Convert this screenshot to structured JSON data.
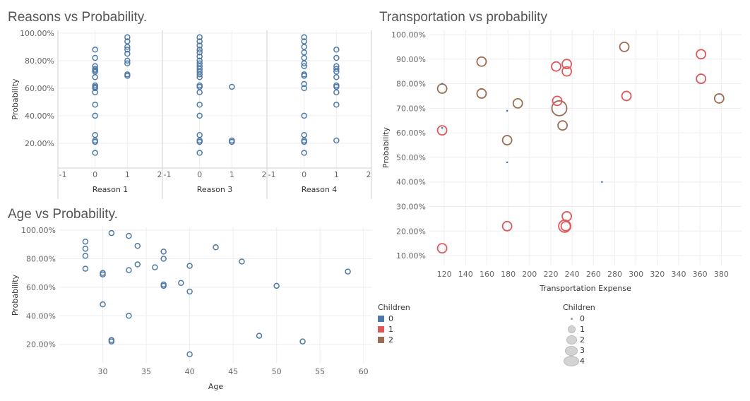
{
  "titles": {
    "reasons": "Reasons vs Probability.",
    "age": "Age vs Probability.",
    "transport": "Transportation vs probability"
  },
  "legend_color": {
    "title": "Children",
    "items": [
      {
        "label": "0",
        "color": "#4e79a7"
      },
      {
        "label": "1",
        "color": "#e15759"
      },
      {
        "label": "2",
        "color": "#9c6b53"
      }
    ]
  },
  "legend_size": {
    "title": "Children",
    "items": [
      "0",
      "1",
      "2",
      "3",
      "4"
    ]
  },
  "chart_data": [
    {
      "id": "reasons",
      "type": "scatter",
      "title": "Reasons vs Probability.",
      "ylabel": "Probability",
      "yticks": [
        "20.00%",
        "40.00%",
        "60.00%",
        "80.00%",
        "100.00%"
      ],
      "ylim": [
        0.02,
        1.02
      ],
      "xlim": [
        -1,
        2
      ],
      "xticks": [
        "-1",
        "0",
        "1",
        "2"
      ],
      "color": "#4e79a7",
      "panels": [
        {
          "xlabel": "Reason 1",
          "points": [
            [
              0,
              0.88
            ],
            [
              0,
              0.82
            ],
            [
              0,
              0.76
            ],
            [
              0,
              0.74
            ],
            [
              0,
              0.73
            ],
            [
              0,
              0.72
            ],
            [
              0,
              0.68
            ],
            [
              0,
              0.62
            ],
            [
              0,
              0.61
            ],
            [
              0,
              0.6
            ],
            [
              0,
              0.57
            ],
            [
              0,
              0.48
            ],
            [
              0,
              0.4
            ],
            [
              0,
              0.26
            ],
            [
              0,
              0.22
            ],
            [
              0,
              0.21
            ],
            [
              0,
              0.13
            ],
            [
              1,
              0.97
            ],
            [
              1,
              0.94
            ],
            [
              1,
              0.9
            ],
            [
              1,
              0.88
            ],
            [
              1,
              0.85
            ],
            [
              1,
              0.8
            ],
            [
              1,
              0.78
            ],
            [
              1,
              0.7
            ],
            [
              1,
              0.69
            ]
          ]
        },
        {
          "xlabel": "Reason 3",
          "points": [
            [
              0,
              0.97
            ],
            [
              0,
              0.94
            ],
            [
              0,
              0.91
            ],
            [
              0,
              0.88
            ],
            [
              0,
              0.86
            ],
            [
              0,
              0.83
            ],
            [
              0,
              0.8
            ],
            [
              0,
              0.78
            ],
            [
              0,
              0.76
            ],
            [
              0,
              0.74
            ],
            [
              0,
              0.72
            ],
            [
              0,
              0.7
            ],
            [
              0,
              0.68
            ],
            [
              0,
              0.62
            ],
            [
              0,
              0.61
            ],
            [
              0,
              0.57
            ],
            [
              0,
              0.48
            ],
            [
              0,
              0.4
            ],
            [
              0,
              0.26
            ],
            [
              0,
              0.22
            ],
            [
              0,
              0.21
            ],
            [
              0,
              0.13
            ],
            [
              1,
              0.61
            ],
            [
              1,
              0.22
            ],
            [
              1,
              0.21
            ]
          ]
        },
        {
          "xlabel": "Reason 4",
          "points": [
            [
              0,
              0.97
            ],
            [
              0,
              0.94
            ],
            [
              0,
              0.9
            ],
            [
              0,
              0.86
            ],
            [
              0,
              0.82
            ],
            [
              0,
              0.78
            ],
            [
              0,
              0.76
            ],
            [
              0,
              0.7
            ],
            [
              0,
              0.69
            ],
            [
              0,
              0.63
            ],
            [
              0,
              0.6
            ],
            [
              0,
              0.4
            ],
            [
              0,
              0.26
            ],
            [
              0,
              0.22
            ],
            [
              0,
              0.21
            ],
            [
              0,
              0.13
            ],
            [
              1,
              0.88
            ],
            [
              1,
              0.82
            ],
            [
              1,
              0.76
            ],
            [
              1,
              0.74
            ],
            [
              1,
              0.72
            ],
            [
              1,
              0.68
            ],
            [
              1,
              0.62
            ],
            [
              1,
              0.61
            ],
            [
              1,
              0.57
            ],
            [
              1,
              0.48
            ],
            [
              1,
              0.22
            ]
          ]
        }
      ]
    },
    {
      "id": "age",
      "type": "scatter",
      "title": "Age vs Probability.",
      "xlabel": "Age",
      "ylabel": "Probability",
      "xlim": [
        25,
        61
      ],
      "ylim": [
        0.07,
        1.02
      ],
      "xticks": [
        "30",
        "35",
        "40",
        "45",
        "50",
        "55",
        "60"
      ],
      "yticks": [
        "20.00%",
        "40.00%",
        "60.00%",
        "80.00%",
        "100.00%"
      ],
      "color": "#4e79a7",
      "points": [
        [
          28,
          0.92
        ],
        [
          28,
          0.87
        ],
        [
          28,
          0.82
        ],
        [
          28,
          0.73
        ],
        [
          30,
          0.7
        ],
        [
          30,
          0.69
        ],
        [
          30,
          0.48
        ],
        [
          31,
          0.98
        ],
        [
          31,
          0.23
        ],
        [
          31,
          0.22
        ],
        [
          33,
          0.96
        ],
        [
          33,
          0.72
        ],
        [
          33,
          0.4
        ],
        [
          34,
          0.89
        ],
        [
          34,
          0.76
        ],
        [
          36,
          0.74
        ],
        [
          37,
          0.85
        ],
        [
          37,
          0.8
        ],
        [
          37,
          0.62
        ],
        [
          37,
          0.61
        ],
        [
          39,
          0.63
        ],
        [
          40,
          0.75
        ],
        [
          40,
          0.57
        ],
        [
          40,
          0.13
        ],
        [
          43,
          0.88
        ],
        [
          46,
          0.78
        ],
        [
          48,
          0.26
        ],
        [
          50,
          0.61
        ],
        [
          53,
          0.22
        ],
        [
          58.2,
          0.71
        ]
      ]
    },
    {
      "id": "transport",
      "type": "scatter",
      "title": "Transportation vs probability",
      "xlabel": "Transportation Expense",
      "ylabel": "Probability",
      "xlim": [
        106,
        399
      ],
      "ylim": [
        0.06,
        1.02
      ],
      "xticks": [
        "120",
        "140",
        "160",
        "180",
        "200",
        "220",
        "240",
        "260",
        "280",
        "300",
        "320",
        "340",
        "360",
        "380"
      ],
      "yticks": [
        "10.00%",
        "20.00%",
        "30.00%",
        "40.00%",
        "50.00%",
        "60.00%",
        "70.00%",
        "80.00%",
        "90.00%",
        "100.00%"
      ],
      "series": [
        {
          "name": "0",
          "color": "#4e79a7",
          "points": [
            [
              118,
              0.8,
              0
            ],
            [
              118,
              0.62,
              0
            ],
            [
              179,
              0.69,
              0
            ],
            [
              179,
              0.48,
              0
            ],
            [
              268,
              0.4,
              0
            ]
          ]
        },
        {
          "name": "1",
          "color": "#e15759",
          "points": [
            [
              118,
              0.61,
              1
            ],
            [
              118,
              0.13,
              1
            ],
            [
              179,
              0.22,
              1
            ],
            [
              225,
              0.87,
              1
            ],
            [
              226,
              0.73,
              1
            ],
            [
              233,
              0.22,
              2
            ],
            [
              234,
              0.22,
              1
            ],
            [
              235,
              0.88,
              1
            ],
            [
              235,
              0.85,
              1
            ],
            [
              235,
              0.26,
              1
            ],
            [
              291,
              0.75,
              1
            ],
            [
              361,
              0.92,
              1
            ],
            [
              361,
              0.82,
              1
            ]
          ]
        },
        {
          "name": "2",
          "color": "#9c6b53",
          "points": [
            [
              118,
              0.78,
              1
            ],
            [
              155,
              0.89,
              1
            ],
            [
              155,
              0.76,
              1
            ],
            [
              179,
              0.57,
              1
            ],
            [
              189,
              0.72,
              1
            ],
            [
              228,
              0.7,
              3
            ],
            [
              231,
              0.63,
              1
            ],
            [
              289,
              0.95,
              1
            ],
            [
              378,
              0.74,
              1
            ]
          ]
        }
      ]
    }
  ]
}
